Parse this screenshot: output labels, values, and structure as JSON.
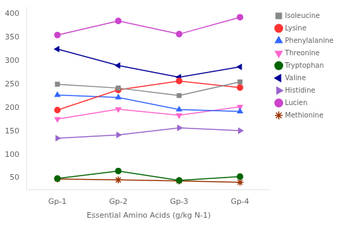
{
  "chart_data": {
    "type": "line",
    "categories": [
      "Gp-1",
      "Gp-2",
      "Gp-3",
      "Gp-4"
    ],
    "series": [
      {
        "name": "Isoleucine",
        "color": "#888888",
        "marker": "square",
        "values": [
          250,
          242,
          226,
          255
        ]
      },
      {
        "name": "Lysine",
        "color": "#FF3333",
        "marker": "circle",
        "values": [
          195,
          238,
          257,
          243
        ]
      },
      {
        "name": "Phenylalanine",
        "color": "#3366FF",
        "marker": "triangle-up",
        "values": [
          227,
          222,
          196,
          192
        ]
      },
      {
        "name": "Threonine",
        "color": "#FF66CC",
        "marker": "triangle-down",
        "values": [
          176,
          197,
          184,
          202
        ]
      },
      {
        "name": "Tryptophan",
        "color": "#006400",
        "marker": "circle",
        "values": [
          49,
          65,
          45,
          53
        ]
      },
      {
        "name": "Valine",
        "color": "#000099",
        "marker": "triangle-left",
        "values": [
          325,
          290,
          265,
          287
        ]
      },
      {
        "name": "Histidine",
        "color": "#9966CC",
        "marker": "triangle-right",
        "values": [
          135,
          142,
          157,
          151
        ]
      },
      {
        "name": "Lucien",
        "color": "#CC44CC",
        "marker": "circle",
        "values": [
          355,
          385,
          357,
          393
        ]
      },
      {
        "name": "Methionine",
        "color": "#993300",
        "marker": "star",
        "values": [
          48,
          46,
          44,
          41
        ]
      }
    ],
    "xlabel": "Essential Amino Acids (g/kg N-1)",
    "ylim": [
      25,
      415
    ],
    "yticks": [
      50,
      100,
      150,
      200,
      250,
      300,
      350,
      400
    ],
    "grid": false,
    "legend": "right"
  }
}
